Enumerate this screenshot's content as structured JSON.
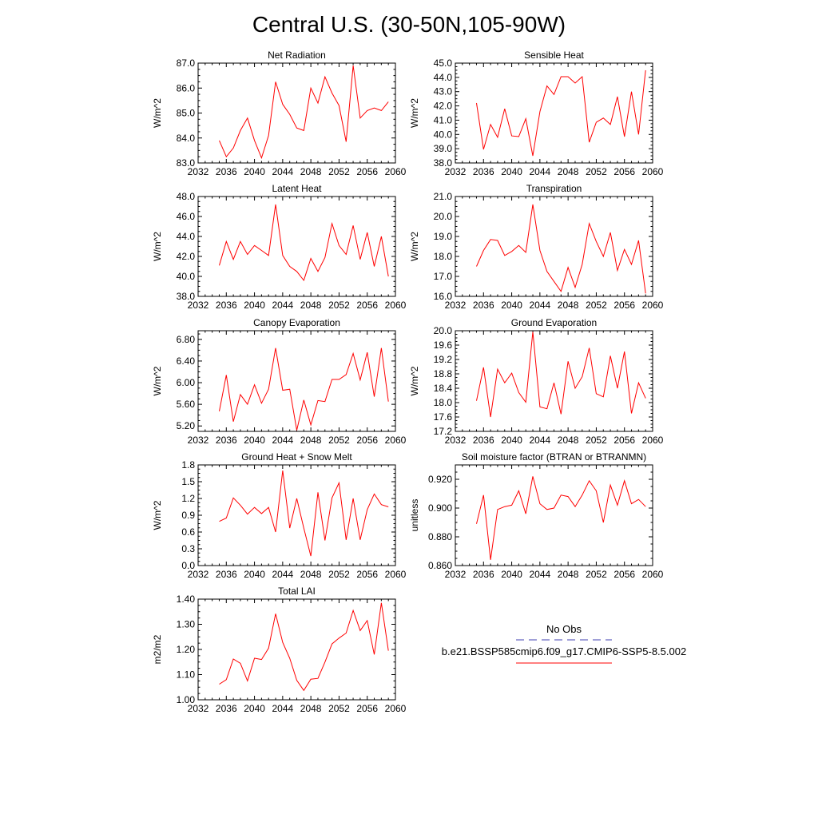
{
  "figure": {
    "title": "Central U.S. (30-50N,105-90W)",
    "line_color": "#ff0000",
    "obs_line_color": "#4040b0"
  },
  "legend": {
    "obs_label": "No Obs",
    "model_label": "b.e21.BSSP585cmip6.f09_g17.CMIP6-SSP5-8.5.002"
  },
  "chart_data": [
    {
      "type": "line",
      "title": "Net Radiation",
      "xlabel": "",
      "ylabel": "W/m^2",
      "xlim": [
        2032,
        2060
      ],
      "ylim": [
        83.0,
        87.0
      ],
      "xticks": [
        "2032",
        "2036",
        "2040",
        "2044",
        "2048",
        "2052",
        "2056",
        "2060"
      ],
      "yticks": [
        "83.0",
        "84.0",
        "85.0",
        "86.0",
        "87.0"
      ],
      "x": [
        2035,
        2036,
        2037,
        2038,
        2039,
        2040,
        2041,
        2042,
        2043,
        2044,
        2045,
        2046,
        2047,
        2048,
        2049,
        2050,
        2051,
        2052,
        2053,
        2054,
        2055,
        2056,
        2057,
        2058,
        2059
      ],
      "values": [
        83.9,
        83.25,
        83.6,
        84.3,
        84.8,
        83.9,
        83.2,
        84.1,
        86.25,
        85.35,
        84.95,
        84.4,
        84.3,
        86.0,
        85.4,
        86.45,
        85.8,
        85.3,
        83.85,
        86.9,
        84.8,
        85.1,
        85.2,
        85.1,
        85.45
      ]
    },
    {
      "type": "line",
      "title": "Sensible Heat",
      "xlabel": "",
      "ylabel": "W/m^2",
      "xlim": [
        2032,
        2060
      ],
      "ylim": [
        38.0,
        45.0
      ],
      "xticks": [
        "2032",
        "2036",
        "2040",
        "2044",
        "2048",
        "2052",
        "2056",
        "2060"
      ],
      "yticks": [
        "38.0",
        "39.0",
        "40.0",
        "41.0",
        "42.0",
        "43.0",
        "44.0",
        "45.0"
      ],
      "x": [
        2035,
        2036,
        2037,
        2038,
        2039,
        2040,
        2041,
        2042,
        2043,
        2044,
        2045,
        2046,
        2047,
        2048,
        2049,
        2050,
        2051,
        2052,
        2053,
        2054,
        2055,
        2056,
        2057,
        2058,
        2059
      ],
      "values": [
        42.2,
        38.95,
        40.7,
        39.8,
        41.8,
        39.9,
        39.85,
        41.1,
        38.5,
        41.6,
        43.4,
        42.8,
        44.05,
        44.05,
        43.6,
        44.05,
        39.45,
        40.85,
        41.15,
        40.7,
        42.65,
        39.85,
        43.0,
        40.0,
        44.5
      ]
    },
    {
      "type": "line",
      "title": "Latent Heat",
      "xlabel": "",
      "ylabel": "W/m^2",
      "xlim": [
        2032,
        2060
      ],
      "ylim": [
        38.0,
        48.0
      ],
      "xticks": [
        "2032",
        "2036",
        "2040",
        "2044",
        "2048",
        "2052",
        "2056",
        "2060"
      ],
      "yticks": [
        "38.0",
        "40.0",
        "42.0",
        "44.0",
        "46.0",
        "48.0"
      ],
      "x": [
        2035,
        2036,
        2037,
        2038,
        2039,
        2040,
        2041,
        2042,
        2043,
        2044,
        2045,
        2046,
        2047,
        2048,
        2049,
        2050,
        2051,
        2052,
        2053,
        2054,
        2055,
        2056,
        2057,
        2058,
        2059
      ],
      "values": [
        41.1,
        43.5,
        41.7,
        43.5,
        42.2,
        43.1,
        42.6,
        42.1,
        47.2,
        42.1,
        41.0,
        40.5,
        39.6,
        41.8,
        40.5,
        41.9,
        45.3,
        43.1,
        42.2,
        45.1,
        41.7,
        44.4,
        41.0,
        44.0,
        40.0
      ]
    },
    {
      "type": "line",
      "title": "Transpiration",
      "xlabel": "",
      "ylabel": "W/m^2",
      "xlim": [
        2032,
        2060
      ],
      "ylim": [
        16.0,
        21.0
      ],
      "xticks": [
        "2032",
        "2036",
        "2040",
        "2044",
        "2048",
        "2052",
        "2056",
        "2060"
      ],
      "yticks": [
        "16.0",
        "17.0",
        "18.0",
        "19.0",
        "20.0",
        "21.0"
      ],
      "x": [
        2035,
        2036,
        2037,
        2038,
        2039,
        2040,
        2041,
        2042,
        2043,
        2044,
        2045,
        2046,
        2047,
        2048,
        2049,
        2050,
        2051,
        2052,
        2053,
        2054,
        2055,
        2056,
        2057,
        2058,
        2059
      ],
      "values": [
        17.5,
        18.3,
        18.85,
        18.8,
        18.05,
        18.25,
        18.55,
        18.2,
        20.6,
        18.3,
        17.25,
        16.75,
        16.25,
        17.45,
        16.45,
        17.6,
        19.65,
        18.75,
        18.0,
        19.2,
        17.3,
        18.35,
        17.6,
        18.8,
        16.15
      ]
    },
    {
      "type": "line",
      "title": "Canopy Evaporation",
      "xlabel": "",
      "ylabel": "W/m^2",
      "xlim": [
        2032,
        2060
      ],
      "ylim": [
        5.1,
        6.96
      ],
      "xticks": [
        "2032",
        "2036",
        "2040",
        "2044",
        "2048",
        "2052",
        "2056",
        "2060"
      ],
      "yticks": [
        "5.20",
        "5.60",
        "6.00",
        "6.40",
        "6.80"
      ],
      "x": [
        2035,
        2036,
        2037,
        2038,
        2039,
        2040,
        2041,
        2042,
        2043,
        2044,
        2045,
        2046,
        2047,
        2048,
        2049,
        2050,
        2051,
        2052,
        2053,
        2054,
        2055,
        2056,
        2057,
        2058,
        2059
      ],
      "values": [
        5.47,
        6.14,
        5.28,
        5.78,
        5.6,
        5.96,
        5.62,
        5.88,
        6.64,
        5.86,
        5.88,
        5.12,
        5.68,
        5.22,
        5.67,
        5.65,
        6.06,
        6.06,
        6.15,
        6.54,
        6.05,
        6.56,
        5.74,
        6.64,
        5.65
      ]
    },
    {
      "type": "line",
      "title": "Ground Evaporation",
      "xlabel": "",
      "ylabel": "W/m^2",
      "xlim": [
        2032,
        2060
      ],
      "ylim": [
        17.2,
        20.0
      ],
      "xticks": [
        "2032",
        "2036",
        "2040",
        "2044",
        "2048",
        "2052",
        "2056",
        "2060"
      ],
      "yticks": [
        "17.2",
        "17.6",
        "18.0",
        "18.4",
        "18.8",
        "19.2",
        "19.6",
        "20.0"
      ],
      "x": [
        2035,
        2036,
        2037,
        2038,
        2039,
        2040,
        2041,
        2042,
        2043,
        2044,
        2045,
        2046,
        2047,
        2048,
        2049,
        2050,
        2051,
        2052,
        2053,
        2054,
        2055,
        2056,
        2057,
        2058,
        2059
      ],
      "values": [
        18.05,
        18.98,
        17.6,
        18.93,
        18.55,
        18.82,
        18.28,
        18.01,
        19.97,
        17.88,
        17.83,
        18.55,
        17.68,
        19.15,
        18.4,
        18.72,
        19.52,
        18.25,
        18.16,
        19.3,
        18.4,
        19.42,
        17.7,
        18.55,
        18.12
      ]
    },
    {
      "type": "line",
      "title": "Ground Heat + Snow Melt",
      "xlabel": "",
      "ylabel": "W/m^2",
      "xlim": [
        2032,
        2060
      ],
      "ylim": [
        0.0,
        1.8
      ],
      "xticks": [
        "2032",
        "2036",
        "2040",
        "2044",
        "2048",
        "2052",
        "2056",
        "2060"
      ],
      "yticks": [
        "0.0",
        "0.3",
        "0.6",
        "0.9",
        "1.2",
        "1.5",
        "1.8"
      ],
      "x": [
        2035,
        2036,
        2037,
        2038,
        2039,
        2040,
        2041,
        2042,
        2043,
        2044,
        2045,
        2046,
        2047,
        2048,
        2049,
        2050,
        2051,
        2052,
        2053,
        2054,
        2055,
        2056,
        2057,
        2058,
        2059
      ],
      "values": [
        0.79,
        0.85,
        1.21,
        1.08,
        0.92,
        1.04,
        0.93,
        1.04,
        0.6,
        1.7,
        0.67,
        1.2,
        0.67,
        0.17,
        1.31,
        0.45,
        1.21,
        1.48,
        0.46,
        1.2,
        0.46,
        1.0,
        1.28,
        1.09,
        1.05
      ]
    },
    {
      "type": "line",
      "title": "Soil moisture factor (BTRAN or BTRANMN)",
      "xlabel": "",
      "ylabel": "unitless",
      "xlim": [
        2032,
        2060
      ],
      "ylim": [
        0.86,
        0.93
      ],
      "xticks": [
        "2032",
        "2036",
        "2040",
        "2044",
        "2048",
        "2052",
        "2056",
        "2060"
      ],
      "yticks": [
        "0.860",
        "0.880",
        "0.900",
        "0.920"
      ],
      "x": [
        2035,
        2036,
        2037,
        2038,
        2039,
        2040,
        2041,
        2042,
        2043,
        2044,
        2045,
        2046,
        2047,
        2048,
        2049,
        2050,
        2051,
        2052,
        2053,
        2054,
        2055,
        2056,
        2057,
        2058,
        2059
      ],
      "values": [
        0.889,
        0.909,
        0.864,
        0.899,
        0.901,
        0.902,
        0.912,
        0.896,
        0.922,
        0.903,
        0.899,
        0.9,
        0.909,
        0.908,
        0.901,
        0.909,
        0.919,
        0.912,
        0.89,
        0.916,
        0.902,
        0.919,
        0.903,
        0.906,
        0.901
      ]
    },
    {
      "type": "line",
      "title": "Total LAI",
      "xlabel": "",
      "ylabel": "m2/m2",
      "xlim": [
        2032,
        2060
      ],
      "ylim": [
        1.0,
        1.4
      ],
      "xticks": [
        "2032",
        "2036",
        "2040",
        "2044",
        "2048",
        "2052",
        "2056",
        "2060"
      ],
      "yticks": [
        "1.00",
        "1.10",
        "1.20",
        "1.30",
        "1.40"
      ],
      "x": [
        2035,
        2036,
        2037,
        2038,
        2039,
        2040,
        2041,
        2042,
        2043,
        2044,
        2045,
        2046,
        2047,
        2048,
        2049,
        2050,
        2051,
        2052,
        2053,
        2054,
        2055,
        2056,
        2057,
        2058,
        2059
      ],
      "values": [
        1.062,
        1.08,
        1.162,
        1.145,
        1.075,
        1.165,
        1.16,
        1.205,
        1.342,
        1.228,
        1.165,
        1.077,
        1.037,
        1.082,
        1.085,
        1.15,
        1.222,
        1.245,
        1.265,
        1.355,
        1.275,
        1.315,
        1.18,
        1.385,
        1.195
      ]
    }
  ]
}
